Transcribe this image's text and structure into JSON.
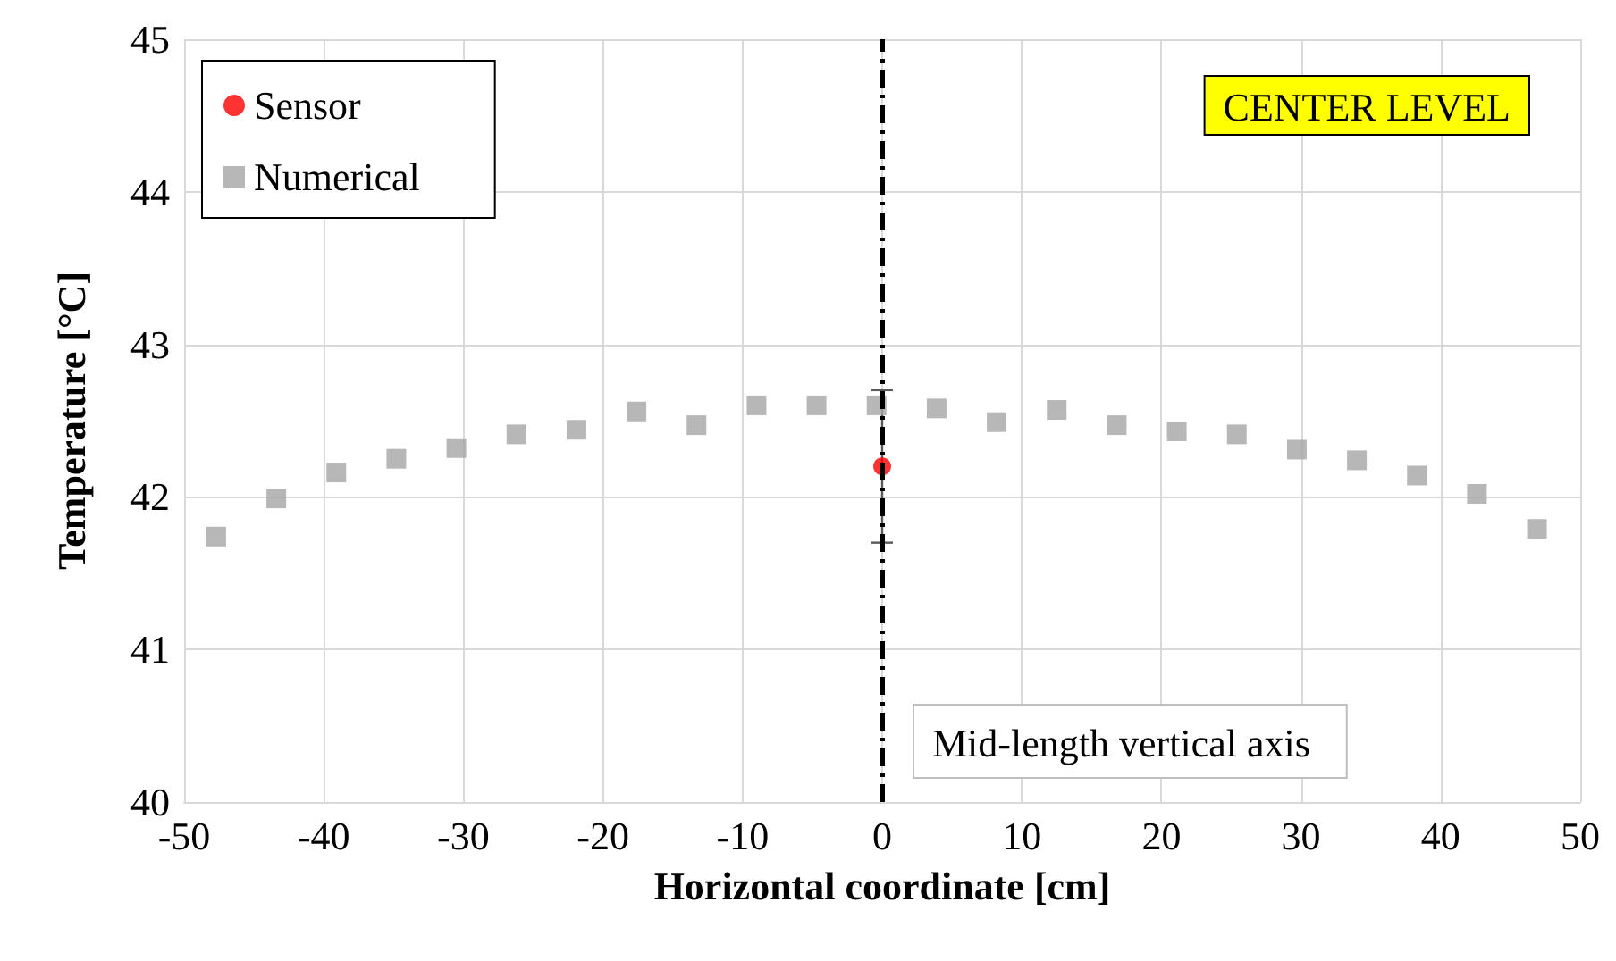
{
  "chart_data": {
    "type": "scatter",
    "xlabel": "Horizontal coordinate [cm]",
    "ylabel": "Temperature [°C]",
    "xlim": [
      -50,
      50
    ],
    "xticks": [
      -50,
      -40,
      -30,
      -20,
      -10,
      0,
      10,
      20,
      30,
      40,
      50
    ],
    "ylim": [
      40,
      45
    ],
    "yticks": [
      40,
      41,
      42,
      43,
      44,
      45
    ],
    "grid": true,
    "legend": "top left",
    "series": [
      {
        "name": "Sensor",
        "color": "#ff0000",
        "marker": "circle",
        "x": [
          0
        ],
        "values": [
          42.2
        ],
        "errors": [
          0.5
        ]
      },
      {
        "name": "Numerical",
        "color": "#a5a5a5",
        "marker": "square",
        "x": [
          -47.7,
          -43.4,
          -39.1,
          -34.8,
          -30.5,
          -26.2,
          -21.9,
          -17.6,
          -13.3,
          -9.0,
          -4.7,
          -0.4,
          3.9,
          8.2,
          12.5,
          16.8,
          21.1,
          25.4,
          29.7,
          34.0,
          38.3,
          42.6,
          46.9
        ],
        "values": [
          41.74,
          41.99,
          42.16,
          42.25,
          42.32,
          42.41,
          42.44,
          42.56,
          42.47,
          42.6,
          42.6,
          42.6,
          42.58,
          42.49,
          42.57,
          42.47,
          42.43,
          42.41,
          42.31,
          42.24,
          42.14,
          42.02,
          41.79
        ]
      }
    ],
    "ref_lines": [
      {
        "axis": "x",
        "value": 0,
        "label": "Mid-length vertical axis",
        "color": "#000000",
        "line_style": "dashed"
      }
    ],
    "annotations": [
      "CENTER LEVEL"
    ]
  }
}
